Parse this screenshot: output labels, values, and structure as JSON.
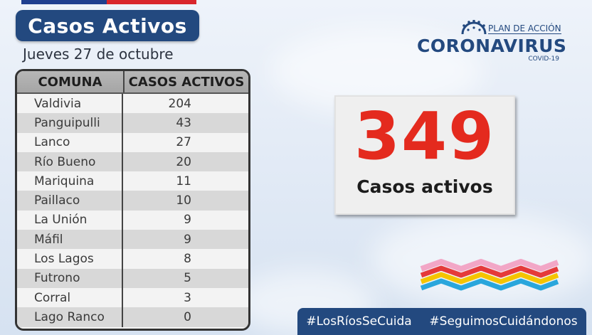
{
  "header": {
    "title": "Casos Activos",
    "date": "Jueves 27 de octubre"
  },
  "logo": {
    "plan": "PLAN DE ACCIÓN",
    "name": "CORONAVIRUS",
    "sub": "COVID-19"
  },
  "table": {
    "col_comuna": "COMUNA",
    "col_casos": "CASOS ACTIVOS",
    "rows": [
      {
        "comuna": "Valdivia",
        "casos": "204"
      },
      {
        "comuna": "Panguipulli",
        "casos": "43"
      },
      {
        "comuna": "Lanco",
        "casos": "27"
      },
      {
        "comuna": "Río Bueno",
        "casos": "20"
      },
      {
        "comuna": "Mariquina",
        "casos": "11"
      },
      {
        "comuna": "Paillaco",
        "casos": "10"
      },
      {
        "comuna": "La Unión",
        "casos": "9"
      },
      {
        "comuna": "Máfil",
        "casos": "9"
      },
      {
        "comuna": "Los Lagos",
        "casos": "8"
      },
      {
        "comuna": "Futrono",
        "casos": "5"
      },
      {
        "comuna": "Corral",
        "casos": "3"
      },
      {
        "comuna": "Lago Ranco",
        "casos": "0"
      }
    ]
  },
  "summary": {
    "total": "349",
    "label": "Casos activos"
  },
  "hashtags": {
    "first": "#LosRíosSeCuida",
    "second": "#SeguimosCuidándonos"
  },
  "colors": {
    "navy": "#23497f",
    "red": "#e42a1e"
  }
}
